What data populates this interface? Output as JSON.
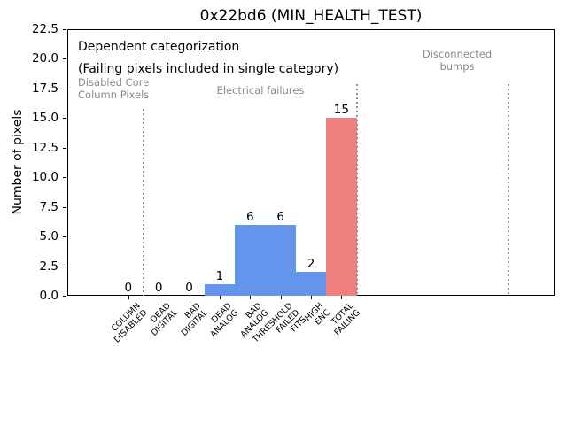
{
  "chart_data": {
    "type": "bar",
    "title": "0x22bd6 (MIN_HEALTH_TEST)",
    "ylabel": "Number of pixels",
    "xlabel": "",
    "ylim": [
      0,
      22.5
    ],
    "xlim": [
      -2,
      14
    ],
    "grid": false,
    "legend": "none",
    "categories": [
      "COLUMN\nDISABLED",
      "DEAD\nDIGITAL",
      "BAD\nDIGITAL",
      "DEAD\nANALOG",
      "BAD\nANALOG",
      "THRESHOLD\nFAILED\nFITS",
      "HIGH\nENC",
      "TOTAL\nFAILING"
    ],
    "values": [
      0,
      0,
      0,
      1,
      6,
      6,
      2,
      15
    ],
    "bar_value_labels": [
      "0",
      "0",
      "0",
      "1",
      "6",
      "6",
      "2",
      "15"
    ],
    "bar_colors": [
      "#6495ed",
      "#6495ed",
      "#6495ed",
      "#6495ed",
      "#6495ed",
      "#6495ed",
      "#6495ed",
      "#f08080"
    ],
    "bar_width": 1.0,
    "yticks": [
      0,
      2.5,
      5,
      7.5,
      10,
      12.5,
      15,
      17.5,
      20,
      22.5
    ],
    "ytick_labels": [
      "0.0",
      "2.5",
      "5.0",
      "7.5",
      "10.0",
      "12.5",
      "15.0",
      "17.5",
      "20.0",
      "22.5"
    ],
    "section_lines": [
      {
        "x": 0.5,
        "y_top": 15.8
      },
      {
        "x": 7.5,
        "y_top": 17.9
      },
      {
        "x": 12.5,
        "y_top": 17.9
      }
    ],
    "section_line_color": "#909090",
    "section_line_style": "dotted",
    "annotations": {
      "note_line1": "Dependent categorization",
      "note_line2": "(Failing pixels included in single category)",
      "section_disabled": "Disabled Core\nColumn Pixels",
      "section_electrical": "Electrical failures",
      "section_disconnected": "Disconnected\nbumps",
      "note_color": "#000000",
      "section_color": "#8a8a8a"
    }
  }
}
